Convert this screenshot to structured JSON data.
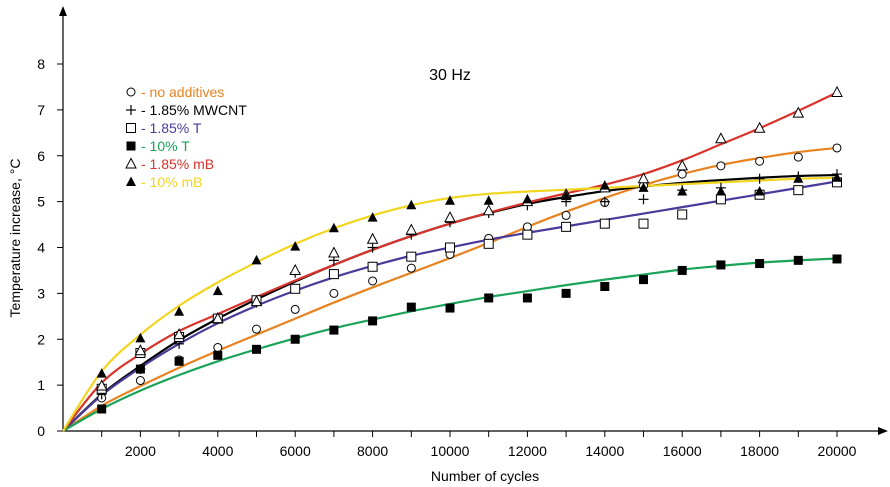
{
  "chart_data": {
    "type": "scatter",
    "title": "30 Hz",
    "xlabel": "Number of cycles",
    "ylabel": "Temperature increase, °C",
    "xlim": [
      0,
      21000
    ],
    "ylim": [
      0,
      8.5
    ],
    "xticks": [
      2000,
      4000,
      6000,
      8000,
      10000,
      12000,
      14000,
      16000,
      18000,
      20000
    ],
    "yticks": [
      0,
      1,
      2,
      3,
      4,
      5,
      6,
      7,
      8
    ],
    "grid": false,
    "legend_position": "top-left",
    "series": [
      {
        "name": "- no additives",
        "marker": "open-circle",
        "color": "#E8821E",
        "x": [
          1000,
          2000,
          3000,
          4000,
          5000,
          6000,
          7000,
          8000,
          9000,
          10000,
          11000,
          12000,
          13000,
          14000,
          15000,
          16000,
          17000,
          18000,
          19000,
          20000
        ],
        "y": [
          0.72,
          1.1,
          1.55,
          1.82,
          2.22,
          2.65,
          3.0,
          3.27,
          3.55,
          3.85,
          4.2,
          4.45,
          4.7,
          4.98,
          5.35,
          5.6,
          5.78,
          5.88,
          5.97,
          6.17
        ],
        "fit": [
          [
            0,
            0
          ],
          [
            1000,
            0.55
          ],
          [
            2000,
            0.98
          ],
          [
            3000,
            1.38
          ],
          [
            4000,
            1.75
          ],
          [
            5000,
            2.1
          ],
          [
            6000,
            2.45
          ],
          [
            7000,
            2.8
          ],
          [
            8000,
            3.13
          ],
          [
            9000,
            3.45
          ],
          [
            10000,
            3.77
          ],
          [
            11000,
            4.1
          ],
          [
            12000,
            4.45
          ],
          [
            13000,
            4.78
          ],
          [
            14000,
            5.08
          ],
          [
            15000,
            5.36
          ],
          [
            16000,
            5.6
          ],
          [
            17000,
            5.8
          ],
          [
            18000,
            5.95
          ],
          [
            19000,
            6.08
          ],
          [
            20000,
            6.17
          ]
        ]
      },
      {
        "name": "- 1.85% MWCNT",
        "marker": "plus",
        "color": "#000000",
        "x": [
          1000,
          2000,
          3000,
          4000,
          5000,
          6000,
          7000,
          8000,
          9000,
          10000,
          11000,
          12000,
          13000,
          14000,
          15000,
          16000,
          17000,
          18000,
          19000,
          20000
        ],
        "y": [
          0.8,
          1.35,
          1.9,
          2.45,
          2.8,
          3.45,
          3.72,
          4.0,
          4.28,
          4.55,
          4.75,
          4.92,
          5.0,
          5.0,
          5.05,
          5.25,
          5.3,
          5.5,
          5.55,
          5.6
        ],
        "fit": [
          [
            0,
            0
          ],
          [
            1000,
            0.8
          ],
          [
            2000,
            1.42
          ],
          [
            3000,
            1.98
          ],
          [
            4000,
            2.45
          ],
          [
            5000,
            2.87
          ],
          [
            6000,
            3.26
          ],
          [
            7000,
            3.62
          ],
          [
            8000,
            3.95
          ],
          [
            9000,
            4.25
          ],
          [
            10000,
            4.52
          ],
          [
            11000,
            4.75
          ],
          [
            12000,
            4.95
          ],
          [
            13000,
            5.1
          ],
          [
            14000,
            5.23
          ],
          [
            15000,
            5.33
          ],
          [
            16000,
            5.41
          ],
          [
            17000,
            5.47
          ],
          [
            18000,
            5.52
          ],
          [
            19000,
            5.56
          ],
          [
            20000,
            5.58
          ]
        ]
      },
      {
        "name": "- 1.85% T",
        "marker": "open-square",
        "color": "#4B3A9A",
        "x": [
          1000,
          2000,
          3000,
          4000,
          5000,
          6000,
          7000,
          8000,
          9000,
          10000,
          11000,
          12000,
          13000,
          14000,
          15000,
          16000,
          17000,
          18000,
          19000,
          20000
        ],
        "y": [
          0.92,
          1.7,
          2.05,
          2.45,
          2.85,
          3.1,
          3.42,
          3.58,
          3.8,
          4.0,
          4.08,
          4.28,
          4.45,
          4.52,
          4.52,
          4.72,
          5.05,
          5.15,
          5.25,
          5.42
        ],
        "fit": [
          [
            0,
            0
          ],
          [
            1000,
            0.78
          ],
          [
            2000,
            1.38
          ],
          [
            3000,
            1.9
          ],
          [
            4000,
            2.35
          ],
          [
            5000,
            2.73
          ],
          [
            6000,
            3.06
          ],
          [
            7000,
            3.35
          ],
          [
            8000,
            3.6
          ],
          [
            9000,
            3.82
          ],
          [
            10000,
            4.0
          ],
          [
            11000,
            4.17
          ],
          [
            12000,
            4.32
          ],
          [
            13000,
            4.46
          ],
          [
            14000,
            4.6
          ],
          [
            15000,
            4.74
          ],
          [
            16000,
            4.88
          ],
          [
            17000,
            5.02
          ],
          [
            18000,
            5.16
          ],
          [
            19000,
            5.3
          ],
          [
            20000,
            5.44
          ]
        ]
      },
      {
        "name": "- 10% T",
        "marker": "filled-square",
        "color": "#1BA35A",
        "x": [
          1000,
          2000,
          3000,
          4000,
          5000,
          6000,
          7000,
          8000,
          9000,
          10000,
          11000,
          12000,
          13000,
          14000,
          15000,
          16000,
          17000,
          18000,
          19000,
          20000
        ],
        "y": [
          0.48,
          1.35,
          1.52,
          1.65,
          1.78,
          2.0,
          2.2,
          2.4,
          2.7,
          2.68,
          2.9,
          2.9,
          3.0,
          3.15,
          3.3,
          3.5,
          3.62,
          3.65,
          3.72,
          3.75
        ],
        "fit": [
          [
            0,
            0
          ],
          [
            1000,
            0.48
          ],
          [
            2000,
            0.88
          ],
          [
            3000,
            1.22
          ],
          [
            4000,
            1.52
          ],
          [
            5000,
            1.78
          ],
          [
            6000,
            2.02
          ],
          [
            7000,
            2.24
          ],
          [
            8000,
            2.43
          ],
          [
            9000,
            2.61
          ],
          [
            10000,
            2.77
          ],
          [
            11000,
            2.92
          ],
          [
            12000,
            3.05
          ],
          [
            13000,
            3.18
          ],
          [
            14000,
            3.3
          ],
          [
            15000,
            3.41
          ],
          [
            16000,
            3.52
          ],
          [
            17000,
            3.6
          ],
          [
            18000,
            3.67
          ],
          [
            19000,
            3.72
          ],
          [
            20000,
            3.76
          ]
        ]
      },
      {
        "name": "- 1.85% mB",
        "marker": "open-triangle",
        "color": "#D8342C",
        "x": [
          1000,
          2000,
          3000,
          4000,
          5000,
          6000,
          7000,
          8000,
          9000,
          10000,
          11000,
          12000,
          13000,
          14000,
          15000,
          16000,
          17000,
          18000,
          19000,
          20000
        ],
        "y": [
          0.98,
          1.75,
          2.1,
          2.45,
          2.82,
          3.5,
          3.88,
          4.18,
          4.38,
          4.65,
          4.8,
          5.0,
          5.15,
          5.3,
          5.5,
          5.78,
          6.37,
          6.6,
          6.93,
          7.38
        ],
        "fit": [
          [
            0,
            0
          ],
          [
            1000,
            1.05
          ],
          [
            2000,
            1.68
          ],
          [
            3000,
            2.18
          ],
          [
            4000,
            2.55
          ],
          [
            5000,
            2.92
          ],
          [
            6000,
            3.28
          ],
          [
            7000,
            3.62
          ],
          [
            8000,
            3.95
          ],
          [
            9000,
            4.25
          ],
          [
            10000,
            4.52
          ],
          [
            11000,
            4.76
          ],
          [
            12000,
            4.98
          ],
          [
            13000,
            5.18
          ],
          [
            14000,
            5.37
          ],
          [
            15000,
            5.6
          ],
          [
            16000,
            5.9
          ],
          [
            17000,
            6.25
          ],
          [
            18000,
            6.6
          ],
          [
            19000,
            6.98
          ],
          [
            20000,
            7.38
          ]
        ]
      },
      {
        "name": "- 10% mB",
        "marker": "filled-triangle",
        "color": "#F2D51E",
        "x": [
          1000,
          2000,
          3000,
          4000,
          5000,
          6000,
          7000,
          8000,
          9000,
          10000,
          11000,
          12000,
          13000,
          14000,
          15000,
          16000,
          17000,
          18000,
          19000,
          20000
        ],
        "y": [
          1.25,
          2.02,
          2.6,
          3.05,
          3.72,
          4.02,
          4.42,
          4.65,
          4.92,
          5.02,
          5.02,
          5.05,
          5.12,
          5.35,
          5.3,
          5.22,
          5.22,
          5.22,
          5.5,
          5.52
        ],
        "fit": [
          [
            0,
            0
          ],
          [
            1000,
            1.3
          ],
          [
            2000,
            2.1
          ],
          [
            3000,
            2.73
          ],
          [
            4000,
            3.24
          ],
          [
            5000,
            3.68
          ],
          [
            6000,
            4.08
          ],
          [
            7000,
            4.42
          ],
          [
            8000,
            4.7
          ],
          [
            9000,
            4.92
          ],
          [
            10000,
            5.08
          ],
          [
            11000,
            5.17
          ],
          [
            12000,
            5.22
          ],
          [
            13000,
            5.26
          ],
          [
            14000,
            5.3
          ],
          [
            15000,
            5.34
          ],
          [
            16000,
            5.38
          ],
          [
            17000,
            5.42
          ],
          [
            18000,
            5.46
          ],
          [
            19000,
            5.5
          ],
          [
            20000,
            5.52
          ]
        ]
      }
    ]
  }
}
